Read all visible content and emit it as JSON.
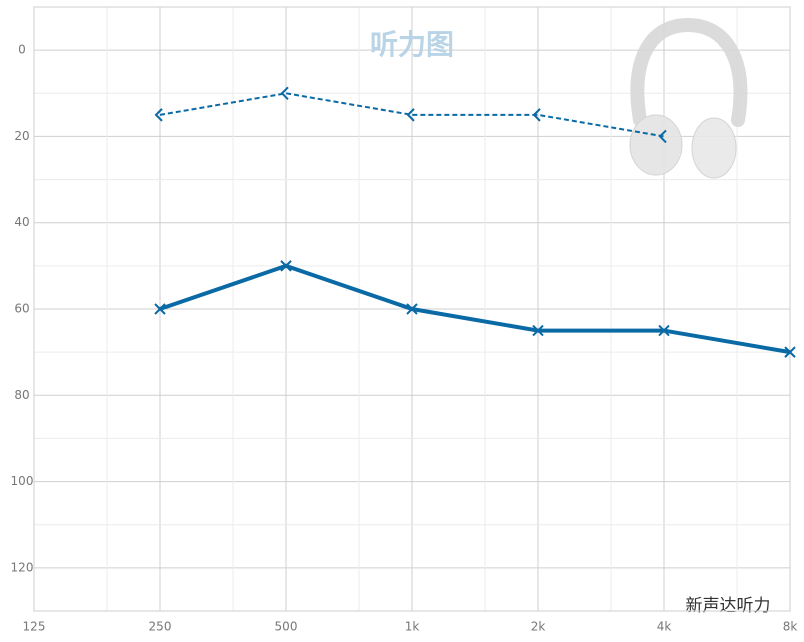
{
  "chart_data": {
    "type": "line",
    "title": "听力图",
    "watermark": "新声达听力",
    "categories": [
      "125",
      "250",
      "500",
      "1k",
      "2k",
      "4k",
      "8k"
    ],
    "series": [
      {
        "color": "#0a6aa6",
        "values": [
          null,
          60,
          50,
          60,
          65,
          65,
          70
        ],
        "dashed": false,
        "marker": "x"
      },
      {
        "color": "#0a6aa6",
        "values": [
          null,
          15,
          10,
          15,
          15,
          20,
          null
        ],
        "dashed": true,
        "marker": "<"
      }
    ],
    "ylim": [
      -10,
      130
    ],
    "yticks": [
      0,
      20,
      40,
      60,
      80,
      100,
      120
    ],
    "invert_y": true,
    "grid": true
  }
}
